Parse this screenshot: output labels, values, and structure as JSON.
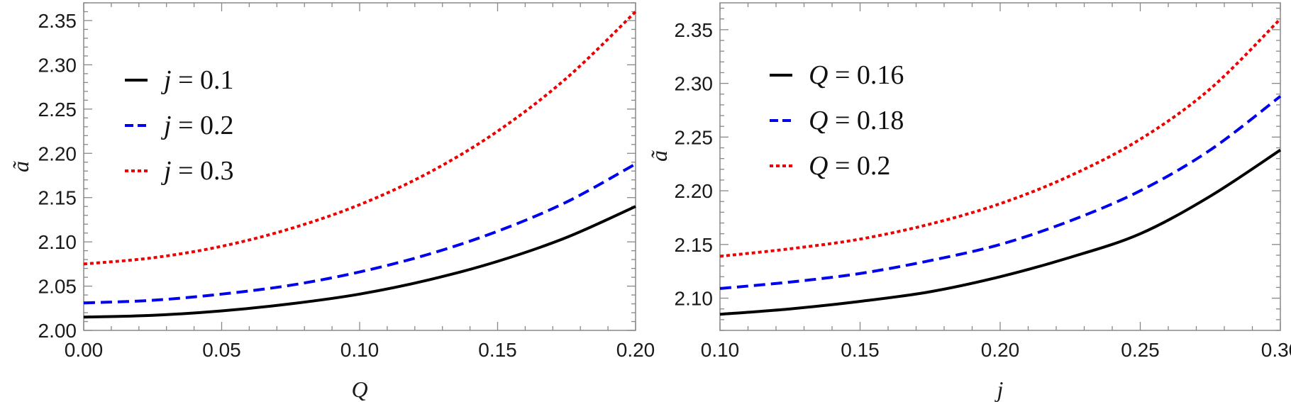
{
  "chart_data": [
    {
      "type": "line",
      "xlabel": "Q",
      "ylabel": "ã",
      "xlim": [
        0.0,
        0.2
      ],
      "ylim": [
        2.0,
        2.37
      ],
      "xticks": [
        "0.00",
        "0.05",
        "0.10",
        "0.15",
        "0.20"
      ],
      "yticks": [
        "2.00",
        "2.05",
        "2.10",
        "2.15",
        "2.20",
        "2.25",
        "2.30",
        "2.35"
      ],
      "legend": {
        "placement": "top-left"
      },
      "grid": false,
      "x": [
        0.0,
        0.025,
        0.05,
        0.075,
        0.1,
        0.125,
        0.15,
        0.175,
        0.2
      ],
      "series": [
        {
          "name": "j = 0.1",
          "var": "j",
          "eq": " = 0.1",
          "color": "#000000",
          "style": "solid",
          "values": [
            2.015,
            2.017,
            2.022,
            2.03,
            2.041,
            2.057,
            2.078,
            2.105,
            2.14
          ]
        },
        {
          "name": "j = 0.2",
          "var": "j",
          "eq": " = 0.2",
          "color": "#0000ee",
          "style": "dashed",
          "values": [
            2.031,
            2.034,
            2.041,
            2.051,
            2.066,
            2.086,
            2.112,
            2.145,
            2.188
          ]
        },
        {
          "name": "j = 0.3",
          "var": "j",
          "eq": " = 0.3",
          "color": "#ee0000",
          "style": "dotted",
          "values": [
            2.075,
            2.082,
            2.095,
            2.115,
            2.142,
            2.178,
            2.225,
            2.285,
            2.36
          ]
        }
      ]
    },
    {
      "type": "line",
      "xlabel": "j",
      "ylabel": "ã",
      "xlim": [
        0.1,
        0.3
      ],
      "ylim": [
        2.07,
        2.375
      ],
      "xticks": [
        "0.10",
        "0.15",
        "0.20",
        "0.25",
        "0.30"
      ],
      "yticks": [
        "2.10",
        "2.15",
        "2.20",
        "2.25",
        "2.30",
        "2.35"
      ],
      "legend": {
        "placement": "top-left"
      },
      "grid": false,
      "x": [
        0.1,
        0.125,
        0.15,
        0.175,
        0.2,
        0.225,
        0.25,
        0.275,
        0.3
      ],
      "series": [
        {
          "name": "Q = 0.16",
          "var": "Q",
          "eq": " = 0.16",
          "color": "#000000",
          "style": "solid",
          "values": [
            2.085,
            2.09,
            2.097,
            2.106,
            2.12,
            2.138,
            2.16,
            2.195,
            2.238
          ]
        },
        {
          "name": "Q = 0.18",
          "var": "Q",
          "eq": " = 0.18",
          "color": "#0000ee",
          "style": "dashed",
          "values": [
            2.109,
            2.115,
            2.123,
            2.135,
            2.15,
            2.172,
            2.2,
            2.238,
            2.288
          ]
        },
        {
          "name": "Q = 0.2",
          "var": "Q",
          "eq": " = 0.2",
          "color": "#ee0000",
          "style": "dotted",
          "values": [
            2.139,
            2.146,
            2.155,
            2.169,
            2.188,
            2.214,
            2.248,
            2.295,
            2.36
          ]
        }
      ]
    }
  ]
}
